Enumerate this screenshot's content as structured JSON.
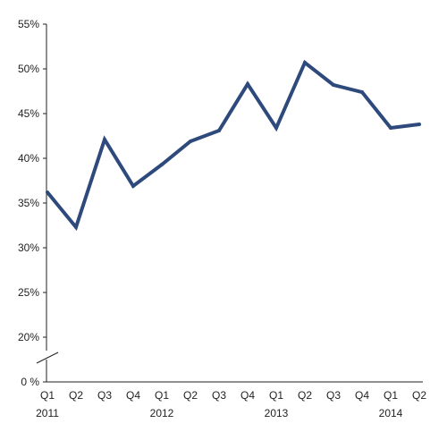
{
  "chart_data": {
    "type": "line",
    "categories": [
      "Q1",
      "Q2",
      "Q3",
      "Q4",
      "Q1",
      "Q2",
      "Q3",
      "Q4",
      "Q1",
      "Q2",
      "Q3",
      "Q4",
      "Q1",
      "Q2"
    ],
    "years": [
      {
        "label": "2011",
        "index": 0
      },
      {
        "label": "2012",
        "index": 4
      },
      {
        "label": "2013",
        "index": 8
      },
      {
        "label": "2014",
        "index": 12
      }
    ],
    "series": [
      {
        "values": [
          36.2,
          32.3,
          42.1,
          36.9,
          39.3,
          41.9,
          43.1,
          48.3,
          43.4,
          50.7,
          48.2,
          47.4,
          43.4,
          43.8
        ]
      }
    ],
    "y_ticks": [
      "55%",
      "50%",
      "45%",
      "40%",
      "35%",
      "30%",
      "25%",
      "20%",
      "0 %"
    ],
    "y_tick_values": [
      55,
      50,
      45,
      40,
      35,
      30,
      25,
      20,
      0
    ],
    "ylim": [
      20,
      55
    ],
    "axis_break": true,
    "line_color": "#2E4A7D",
    "axis_color": "#222222"
  }
}
